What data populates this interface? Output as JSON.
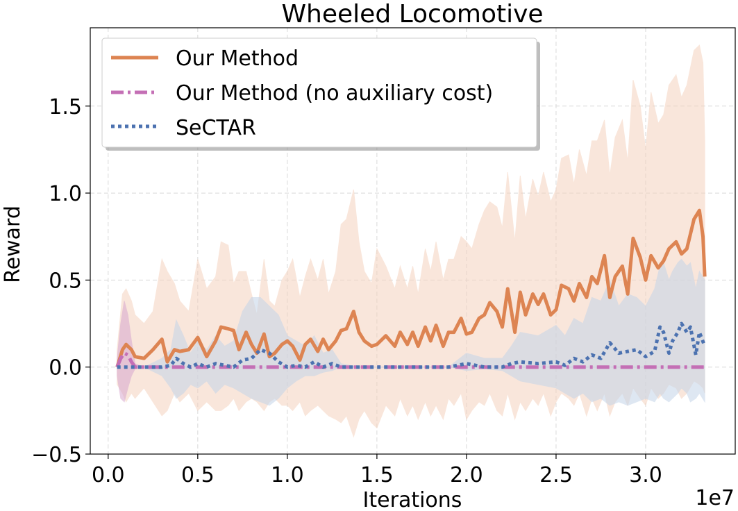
{
  "chart_data": {
    "type": "line",
    "title": "Wheeled Locomotive",
    "xlabel": "Iterations",
    "ylabel": "Reward",
    "x_offset_label": "1e7",
    "xlim": [
      -0.1,
      3.5
    ],
    "ylim": [
      -0.5,
      1.95
    ],
    "x_ticks": [
      0.0,
      0.5,
      1.0,
      1.5,
      2.0,
      2.5,
      3.0
    ],
    "x_tick_labels": [
      "0.0",
      "0.5",
      "1.0",
      "1.5",
      "2.0",
      "2.5",
      "3.0"
    ],
    "y_ticks": [
      -0.5,
      0.0,
      0.5,
      1.0,
      1.5
    ],
    "y_tick_labels": [
      "−0.5",
      "0.0",
      "0.5",
      "1.0",
      "1.5"
    ],
    "grid": true,
    "legend_position": "top-left",
    "series": [
      {
        "name": "Our Method",
        "color": "#dd8452",
        "band_color": "#f5d3bf",
        "style": "solid",
        "x": [
          0.05,
          0.08,
          0.1,
          0.13,
          0.15,
          0.2,
          0.25,
          0.3,
          0.33,
          0.37,
          0.4,
          0.45,
          0.5,
          0.55,
          0.6,
          0.63,
          0.67,
          0.7,
          0.73,
          0.77,
          0.8,
          0.83,
          0.87,
          0.9,
          0.93,
          0.97,
          1.0,
          1.03,
          1.07,
          1.1,
          1.13,
          1.17,
          1.2,
          1.23,
          1.27,
          1.3,
          1.33,
          1.37,
          1.4,
          1.43,
          1.47,
          1.5,
          1.55,
          1.6,
          1.63,
          1.67,
          1.7,
          1.73,
          1.77,
          1.8,
          1.83,
          1.87,
          1.9,
          1.93,
          1.97,
          2.0,
          2.03,
          2.07,
          2.1,
          2.13,
          2.17,
          2.2,
          2.23,
          2.27,
          2.3,
          2.33,
          2.37,
          2.4,
          2.43,
          2.47,
          2.5,
          2.53,
          2.57,
          2.6,
          2.63,
          2.67,
          2.7,
          2.73,
          2.77,
          2.8,
          2.83,
          2.87,
          2.9,
          2.93,
          2.97,
          3.0,
          3.03,
          3.07,
          3.1,
          3.13,
          3.17,
          3.2,
          3.23,
          3.27,
          3.3,
          3.32,
          3.33
        ],
        "y": [
          0.0,
          0.1,
          0.13,
          0.1,
          0.06,
          0.05,
          0.1,
          0.16,
          0.03,
          0.1,
          0.09,
          0.1,
          0.17,
          0.06,
          0.15,
          0.23,
          0.22,
          0.21,
          0.1,
          0.2,
          0.13,
          0.08,
          0.19,
          0.06,
          0.08,
          0.13,
          0.15,
          0.12,
          0.04,
          0.13,
          0.16,
          0.09,
          0.16,
          0.1,
          0.15,
          0.21,
          0.22,
          0.32,
          0.2,
          0.15,
          0.12,
          0.13,
          0.18,
          0.12,
          0.2,
          0.13,
          0.2,
          0.12,
          0.23,
          0.15,
          0.24,
          0.12,
          0.2,
          0.2,
          0.28,
          0.19,
          0.2,
          0.28,
          0.3,
          0.37,
          0.32,
          0.23,
          0.45,
          0.2,
          0.43,
          0.3,
          0.42,
          0.36,
          0.42,
          0.3,
          0.33,
          0.47,
          0.45,
          0.38,
          0.48,
          0.4,
          0.52,
          0.48,
          0.64,
          0.4,
          0.52,
          0.58,
          0.42,
          0.74,
          0.63,
          0.5,
          0.64,
          0.57,
          0.61,
          0.68,
          0.72,
          0.65,
          0.68,
          0.85,
          0.9,
          0.75,
          0.52
        ],
        "upper": [
          0.1,
          0.42,
          0.45,
          0.38,
          0.3,
          0.25,
          0.32,
          0.62,
          0.55,
          0.48,
          0.38,
          0.32,
          0.62,
          0.45,
          0.52,
          0.72,
          0.7,
          0.48,
          0.55,
          0.55,
          0.42,
          0.3,
          0.62,
          0.38,
          0.35,
          0.5,
          0.55,
          0.62,
          0.4,
          0.52,
          0.62,
          0.5,
          0.62,
          0.42,
          0.55,
          0.82,
          0.85,
          1.02,
          0.72,
          0.55,
          0.48,
          0.68,
          0.58,
          0.45,
          0.58,
          0.45,
          0.58,
          0.42,
          0.68,
          0.55,
          0.72,
          0.5,
          0.62,
          0.62,
          0.75,
          0.72,
          0.68,
          0.82,
          0.9,
          0.95,
          0.92,
          0.8,
          1.12,
          0.72,
          1.1,
          0.85,
          1.08,
          0.98,
          1.12,
          0.95,
          1.02,
          1.2,
          1.22,
          1.05,
          1.25,
          1.1,
          1.3,
          1.3,
          1.42,
          1.1,
          1.32,
          1.42,
          1.18,
          1.65,
          1.5,
          1.25,
          1.58,
          1.4,
          1.45,
          1.62,
          1.68,
          1.55,
          1.62,
          1.82,
          1.85,
          1.75,
          1.3
        ],
        "lower": [
          -0.1,
          -0.15,
          -0.2,
          -0.15,
          -0.18,
          -0.12,
          -0.2,
          -0.28,
          -0.25,
          -0.15,
          -0.2,
          -0.15,
          -0.25,
          -0.2,
          -0.25,
          -0.25,
          -0.22,
          -0.18,
          -0.25,
          -0.2,
          -0.18,
          -0.2,
          -0.25,
          -0.2,
          -0.18,
          -0.22,
          -0.22,
          -0.25,
          -0.2,
          -0.28,
          -0.25,
          -0.22,
          -0.25,
          -0.28,
          -0.3,
          -0.32,
          -0.28,
          -0.4,
          -0.3,
          -0.25,
          -0.32,
          -0.35,
          -0.22,
          -0.28,
          -0.18,
          -0.28,
          -0.22,
          -0.3,
          -0.2,
          -0.28,
          -0.22,
          -0.3,
          -0.18,
          -0.22,
          -0.15,
          -0.3,
          -0.25,
          -0.2,
          -0.22,
          -0.15,
          -0.25,
          -0.28,
          -0.15,
          -0.3,
          -0.2,
          -0.25,
          -0.18,
          -0.22,
          -0.15,
          -0.28,
          -0.2,
          -0.15,
          -0.18,
          -0.22,
          -0.15,
          -0.28,
          -0.18,
          -0.25,
          -0.15,
          -0.28,
          -0.2,
          -0.15,
          -0.22,
          -0.12,
          -0.18,
          -0.22,
          -0.12,
          -0.18,
          -0.15,
          -0.1,
          -0.12,
          -0.18,
          -0.15,
          -0.08,
          -0.1,
          -0.12,
          -0.15
        ]
      },
      {
        "name": "Our Method (no auxiliary cost)",
        "color": "#c46fb5",
        "band_color": "#d8a8cf",
        "style": "dashdot",
        "x": [
          0.05,
          0.07,
          0.09,
          0.11,
          0.13,
          0.15,
          0.2,
          0.5,
          1.0,
          1.5,
          2.0,
          2.5,
          3.0,
          3.33
        ],
        "y": [
          0.0,
          0.05,
          0.08,
          0.07,
          0.03,
          0.0,
          0.0,
          0.0,
          0.0,
          0.0,
          0.0,
          0.0,
          0.0,
          0.0
        ],
        "upper": [
          0.05,
          0.25,
          0.38,
          0.3,
          0.15,
          0.02,
          0.0,
          0.0,
          0.0,
          0.0,
          0.0,
          0.0,
          0.0,
          0.0
        ],
        "lower": [
          -0.05,
          -0.18,
          -0.2,
          -0.12,
          -0.05,
          -0.01,
          0.0,
          0.0,
          0.0,
          0.0,
          0.0,
          0.0,
          0.0,
          0.0
        ]
      },
      {
        "name": "SeCTAR",
        "color": "#4c72b0",
        "band_color": "#c4d4e9",
        "style": "dotted",
        "x": [
          0.05,
          0.2,
          0.3,
          0.35,
          0.38,
          0.42,
          0.46,
          0.5,
          0.55,
          0.6,
          0.65,
          0.7,
          0.75,
          0.8,
          0.85,
          0.9,
          0.95,
          1.0,
          1.05,
          1.1,
          1.15,
          1.2,
          1.25,
          1.3,
          1.4,
          1.5,
          1.6,
          1.7,
          1.8,
          1.9,
          2.0,
          2.1,
          2.2,
          2.25,
          2.3,
          2.4,
          2.5,
          2.55,
          2.6,
          2.65,
          2.7,
          2.75,
          2.8,
          2.85,
          2.9,
          2.95,
          3.0,
          3.05,
          3.08,
          3.1,
          3.13,
          3.15,
          3.18,
          3.2,
          3.23,
          3.25,
          3.28,
          3.3,
          3.33
        ],
        "y": [
          0.0,
          0.0,
          0.0,
          0.01,
          0.05,
          0.02,
          0.0,
          0.02,
          0.0,
          0.02,
          0.01,
          0.0,
          0.04,
          0.05,
          0.1,
          0.08,
          0.03,
          0.0,
          0.01,
          0.0,
          0.03,
          0.0,
          0.02,
          0.0,
          0.0,
          0.0,
          0.0,
          0.0,
          0.0,
          0.0,
          0.02,
          0.0,
          0.0,
          0.02,
          0.03,
          0.02,
          0.03,
          0.01,
          0.05,
          0.03,
          0.07,
          0.05,
          0.14,
          0.08,
          0.09,
          0.1,
          0.06,
          0.09,
          0.23,
          0.2,
          0.08,
          0.15,
          0.2,
          0.25,
          0.2,
          0.23,
          0.07,
          0.2,
          0.12
        ],
        "upper": [
          0.0,
          0.0,
          0.05,
          0.1,
          0.27,
          0.18,
          0.08,
          0.15,
          0.1,
          0.18,
          0.12,
          0.15,
          0.32,
          0.4,
          0.4,
          0.35,
          0.3,
          0.18,
          0.15,
          0.12,
          0.18,
          0.08,
          0.1,
          0.02,
          0.0,
          0.0,
          0.0,
          0.0,
          0.0,
          0.0,
          0.08,
          0.05,
          0.05,
          0.12,
          0.2,
          0.18,
          0.24,
          0.18,
          0.28,
          0.25,
          0.4,
          0.38,
          0.5,
          0.35,
          0.42,
          0.4,
          0.35,
          0.45,
          0.58,
          0.6,
          0.5,
          0.55,
          0.6,
          0.62,
          0.58,
          0.6,
          0.45,
          0.55,
          0.5
        ],
        "lower": [
          0.0,
          0.0,
          -0.05,
          -0.12,
          -0.18,
          -0.15,
          -0.1,
          -0.12,
          -0.08,
          -0.15,
          -0.1,
          -0.12,
          -0.15,
          -0.18,
          -0.2,
          -0.22,
          -0.18,
          -0.12,
          -0.08,
          -0.05,
          -0.05,
          -0.03,
          -0.02,
          0.0,
          0.0,
          0.0,
          0.0,
          0.0,
          0.0,
          0.0,
          -0.02,
          -0.01,
          -0.02,
          -0.05,
          -0.08,
          -0.1,
          -0.12,
          -0.15,
          -0.18,
          -0.15,
          -0.2,
          -0.18,
          -0.22,
          -0.2,
          -0.22,
          -0.2,
          -0.18,
          -0.2,
          -0.15,
          -0.18,
          -0.2,
          -0.18,
          -0.15,
          -0.12,
          -0.15,
          -0.2,
          -0.18,
          -0.15,
          -0.2
        ]
      }
    ]
  }
}
